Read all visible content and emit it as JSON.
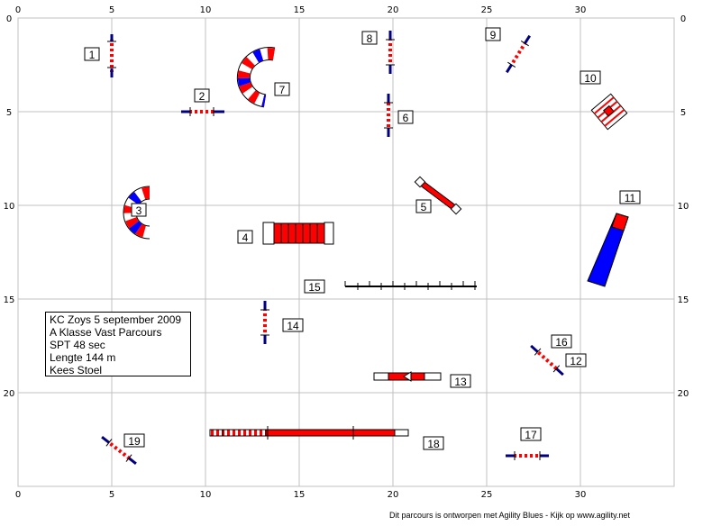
{
  "grid": {
    "x_ticks": [
      "0",
      "5",
      "10",
      "15",
      "20",
      "25",
      "30"
    ],
    "y_ticks": [
      "0",
      "5",
      "10",
      "15",
      "20"
    ]
  },
  "info": {
    "line1": "KC Zoys 5 september 2009",
    "line2": "A Klasse Vast Parcours",
    "line3": "SPT 48 sec",
    "line4": "Lengte 144 m",
    "line5": "Kees Stoel"
  },
  "obstacles": {
    "n1": "1",
    "n2": "2",
    "n3": "3",
    "n4": "4",
    "n5": "5",
    "n6": "6",
    "n7": "7",
    "n8": "8",
    "n9": "9",
    "n10": "10",
    "n11": "11",
    "n12": "12",
    "n13": "13",
    "n14": "14",
    "n15": "15",
    "n16": "16",
    "n17": "17",
    "n18": "18",
    "n19": "19"
  },
  "colors": {
    "red": "#ff0000",
    "blue": "#0000ff",
    "navy": "#000080",
    "grid": "#c0c0c0"
  },
  "footer": "Dit parcours is ontworpen met Agility Blues - Kijk op www.agility.net"
}
